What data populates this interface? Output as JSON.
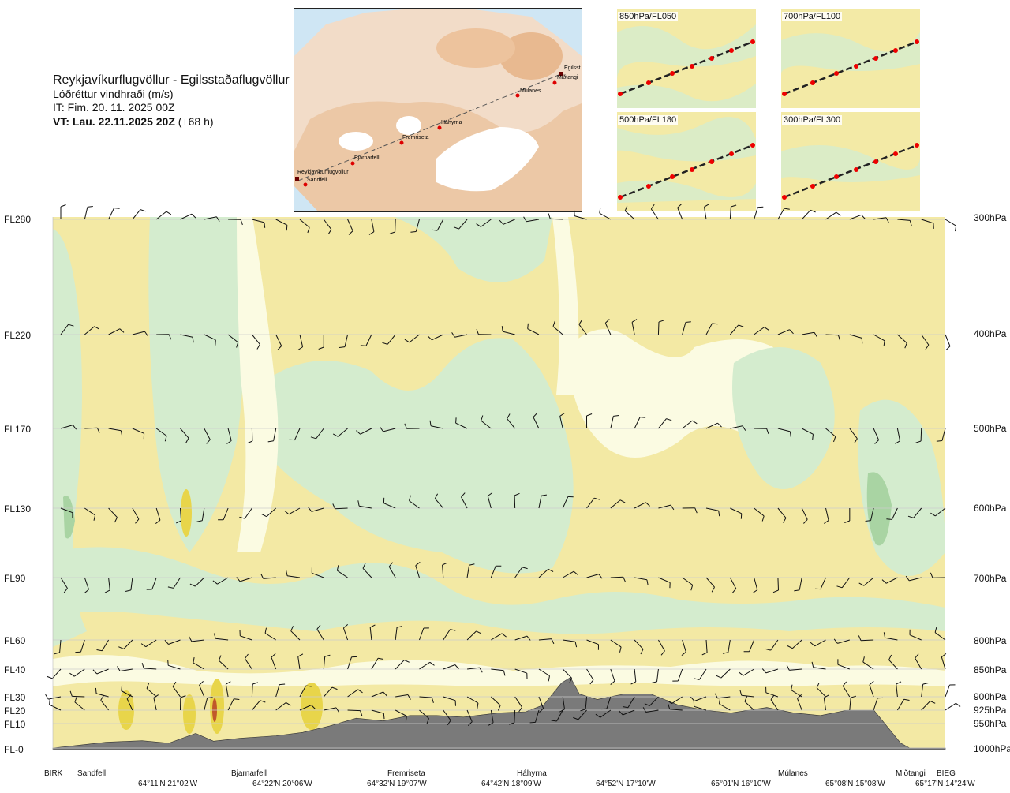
{
  "header": {
    "route": "Reykjavíkurflugvöllur - Egilsstaðaflugvöllur",
    "parameter": "Lóðréttur vindhraði (m/s)",
    "issue_time": "IT: Fim. 20. 11. 2025 00Z",
    "valid_bold": "VT: Lau. 22.11.2025 20Z",
    "valid_offset": " (+68 h)"
  },
  "map": {
    "labels": {
      "reykjavik": "Reykjavíkurflugvöllur",
      "sandfell": "Sandfell",
      "bjarnarfell": "Bjarnarfell",
      "fremriseta": "Fremriseta",
      "hahyrna": "Háhyrna",
      "mulanes": "Múlanes",
      "egilsst": "Egilsst",
      "midtangi": "Miðtangi"
    }
  },
  "thumbnails": [
    {
      "label": "850hPa/FL050"
    },
    {
      "label": "700hPa/FL100"
    },
    {
      "label": "500hPa/FL180"
    },
    {
      "label": "300hPa/FL300"
    }
  ],
  "levels_left": [
    "FL280",
    "FL220",
    "FL170",
    "FL130",
    "FL90",
    "FL60",
    "FL40",
    "FL30",
    "FL20",
    "FL10",
    "FL-0"
  ],
  "levels_right": [
    "300hPa",
    "400hPa",
    "500hPa",
    "600hPa",
    "700hPa",
    "800hPa",
    "850hPa",
    "900hPa",
    "925hPa",
    "950hPa",
    "1000hPa"
  ],
  "waypoints": [
    "BIRK",
    "Sandfell",
    "Bjarnarfell",
    "Fremriseta",
    "Háhyrna",
    "Múlanes",
    "Miðtangi",
    "BIEG"
  ],
  "coords": [
    "64°11'N 21°02'W",
    "64°22'N 20°06'W",
    "64°32'N 19°07'W",
    "64°42'N 18°09'W",
    "64°52'N 17°10'W",
    "65°01'N 16°10'W",
    "65°08'N 15°08'W",
    "65°17'N 14°24'W"
  ],
  "colors": {
    "upward": "#f3e9a4",
    "upward_strong": "#e8d54a",
    "neutral": "#fbfbe2",
    "downward": "#d4ecce",
    "downward_strong": "#a9d4a3",
    "terrain": "#7a7a7a"
  },
  "chart_data": {
    "type": "heatmap",
    "description_levels_hpa": [
      300,
      400,
      500,
      600,
      700,
      800,
      850,
      900,
      925,
      950,
      1000
    ],
    "x_start": "BIRK",
    "x_end": "BIEG",
    "terrain_profile": {
      "x_fraction": [
        0,
        0.03,
        0.06,
        0.1,
        0.13,
        0.16,
        0.18,
        0.21,
        0.25,
        0.28,
        0.31,
        0.34,
        0.37,
        0.4,
        0.43,
        0.46,
        0.5,
        0.53,
        0.55,
        0.57,
        0.58,
        0.59,
        0.61,
        0.64,
        0.67,
        0.7,
        0.73,
        0.76,
        0.8,
        0.83,
        0.86,
        0.89,
        0.92,
        0.95,
        0.96,
        0.97,
        1.0
      ],
      "pressure_hpa": [
        1000,
        994,
        988,
        985,
        990,
        970,
        986,
        980,
        975,
        968,
        955,
        940,
        945,
        935,
        935,
        938,
        930,
        928,
        915,
        875,
        865,
        895,
        905,
        895,
        895,
        915,
        925,
        930,
        920,
        930,
        935,
        925,
        925,
        990,
        1000,
        1000,
        1000
      ]
    },
    "wind_barb_levels_hpa": [
      300,
      400,
      500,
      600,
      700,
      800,
      850,
      900,
      925
    ]
  }
}
